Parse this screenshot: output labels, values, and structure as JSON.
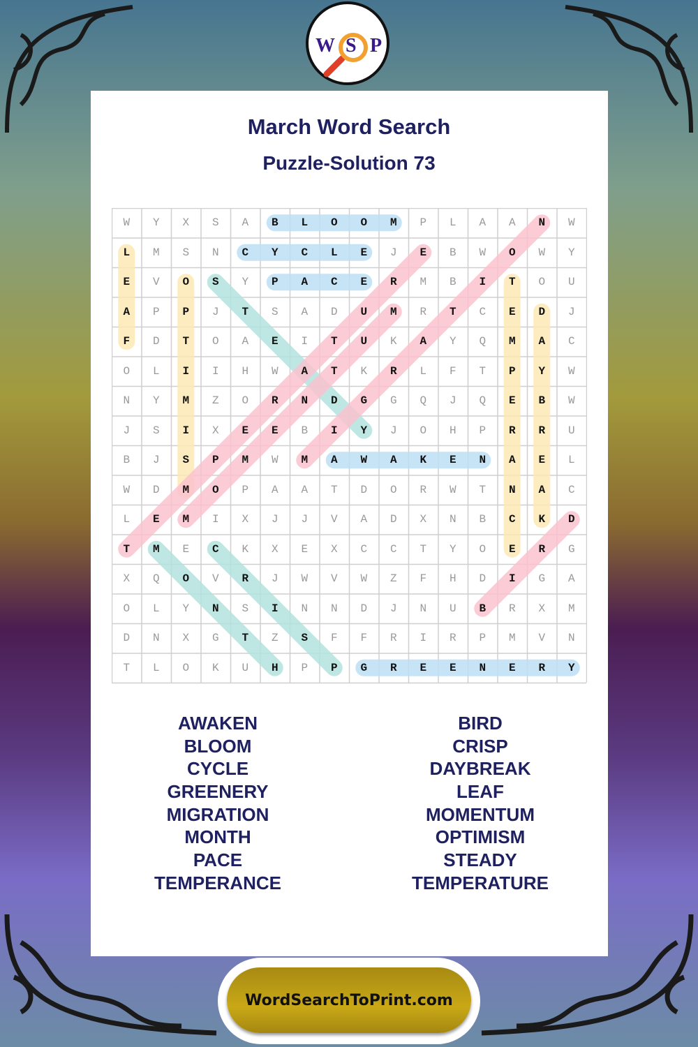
{
  "logo": {
    "letters": [
      "W",
      "S",
      "P"
    ],
    "icon": "magnifier-icon"
  },
  "title": "March Word Search",
  "subtitle": "Puzzle-Solution 73",
  "grid": [
    "WYXSABLOOMPLAANW",
    "LMSNCYCLEJEBWOWY",
    "EVOSYPACERMBITOU",
    "APPJTSADUMRTCEDJ",
    "FDTOAEITUKAYQMAC",
    "OLIIHWATKRLFTPYW",
    "NYMZORNDGGQJQEBW",
    "JSIXEEBIYJOHPRRU",
    "BJSPMWMAWAKENAEL",
    "WDMOPAATDORWTNAC",
    "LEMIXJJVADXNBCKD",
    "TMECKXEXCCTYOERG",
    "XQOVRJWVWZFHDIGA",
    "OLYNSINNDJNUBRXM",
    "DNXGTZSFFRIRPMVN",
    "TLOKUHPPGREENERY"
  ],
  "colors": {
    "horizontal": "#bde0f5",
    "vertical": "#fde9b4",
    "diagonal_up": "#fbc2cf",
    "diagonal_down": "#b3e3df",
    "text": "#1f2060"
  },
  "solutions": [
    {
      "word": "BLOOM",
      "start": [
        1,
        6
      ],
      "end": [
        1,
        10
      ],
      "color": "horizontal"
    },
    {
      "word": "CYCLE",
      "start": [
        2,
        5
      ],
      "end": [
        2,
        9
      ],
      "color": "horizontal"
    },
    {
      "word": "PACE",
      "start": [
        3,
        6
      ],
      "end": [
        3,
        9
      ],
      "color": "horizontal"
    },
    {
      "word": "AWAKEN",
      "start": [
        9,
        8
      ],
      "end": [
        9,
        13
      ],
      "color": "horizontal"
    },
    {
      "word": "GREENERY",
      "start": [
        16,
        9
      ],
      "end": [
        16,
        16
      ],
      "color": "horizontal"
    },
    {
      "word": "LEAF",
      "start": [
        2,
        1
      ],
      "end": [
        5,
        1
      ],
      "color": "vertical"
    },
    {
      "word": "OPTIMISM",
      "start": [
        3,
        3
      ],
      "end": [
        10,
        3
      ],
      "color": "vertical"
    },
    {
      "word": "TEMPERANCE",
      "start": [
        3,
        14
      ],
      "end": [
        12,
        14
      ],
      "color": "vertical"
    },
    {
      "word": "DAYBREAK",
      "start": [
        4,
        15
      ],
      "end": [
        11,
        15
      ],
      "color": "vertical"
    },
    {
      "word": "STEADY",
      "start": [
        3,
        4
      ],
      "end": [
        8,
        9
      ],
      "color": "diagonal_down"
    },
    {
      "word": "MONTH",
      "start": [
        12,
        2
      ],
      "end": [
        16,
        6
      ],
      "color": "diagonal_down"
    },
    {
      "word": "CRISP",
      "start": [
        12,
        4
      ],
      "end": [
        16,
        8
      ],
      "color": "diagonal_down"
    },
    {
      "word": "TEMPERATURE",
      "start": [
        12,
        1
      ],
      "end": [
        2,
        11
      ],
      "color": "diagonal_up"
    },
    {
      "word": "MOMENTUM",
      "start": [
        11,
        3
      ],
      "end": [
        4,
        10
      ],
      "color": "diagonal_up"
    },
    {
      "word": "MIGRATION",
      "start": [
        9,
        7
      ],
      "end": [
        1,
        15
      ],
      "color": "diagonal_up"
    },
    {
      "word": "BIRD",
      "start": [
        14,
        13
      ],
      "end": [
        11,
        16
      ],
      "color": "diagonal_up"
    }
  ],
  "word_list_left": [
    "AWAKEN",
    "BLOOM",
    "CYCLE",
    "GREENERY",
    "MIGRATION",
    "MONTH",
    "PACE",
    "TEMPERANCE"
  ],
  "word_list_right": [
    "BIRD",
    "CRISP",
    "DAYBREAK",
    "LEAF",
    "MOMENTUM",
    "OPTIMISM",
    "STEADY",
    "TEMPERATURE"
  ],
  "footer": {
    "site": "WordSearchToPrint.com"
  }
}
